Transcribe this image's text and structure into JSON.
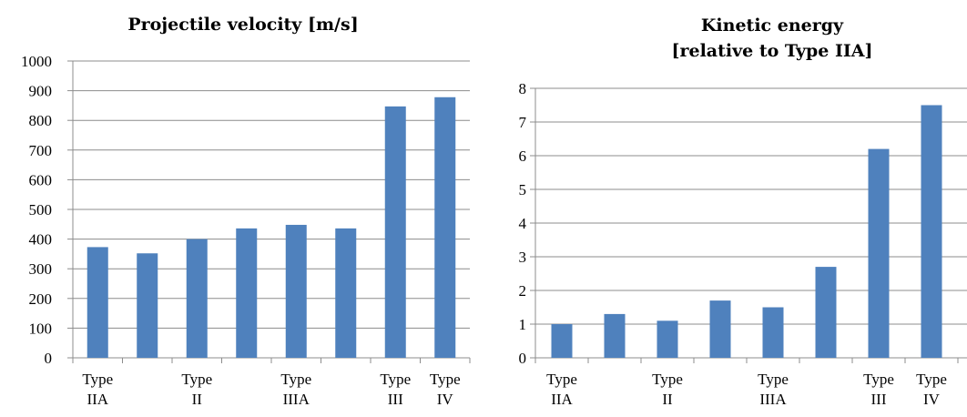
{
  "chart_data": [
    {
      "type": "bar",
      "title_lines": [
        "Projectile velocity [m/s]"
      ],
      "categories": [
        "",
        "",
        "",
        "",
        "",
        "",
        "",
        ""
      ],
      "x_labels": [
        {
          "slot": 0,
          "lines": [
            "Type",
            "IIA"
          ]
        },
        {
          "slot": 2,
          "lines": [
            "Type",
            "II"
          ]
        },
        {
          "slot": 4,
          "lines": [
            "Type",
            "IIIA"
          ]
        },
        {
          "slot": 6,
          "lines": [
            "Type",
            "III"
          ]
        },
        {
          "slot": 7,
          "lines": [
            "Type",
            "IV"
          ]
        }
      ],
      "values": [
        373,
        352,
        400,
        436,
        448,
        436,
        847,
        878
      ],
      "ylim": [
        0,
        1000
      ],
      "yticks": [
        "0",
        "100",
        "200",
        "300",
        "400",
        "500",
        "600",
        "700",
        "800",
        "900",
        "1000"
      ],
      "grid": true,
      "bar_color": "#4f81bd"
    },
    {
      "type": "bar",
      "title_lines": [
        "Kinetic energy",
        "[relative to Type IIA]"
      ],
      "categories": [
        "",
        "",
        "",
        "",
        "",
        "",
        "",
        ""
      ],
      "x_labels": [
        {
          "slot": 0,
          "lines": [
            "Type",
            "IIA"
          ]
        },
        {
          "slot": 2,
          "lines": [
            "Type",
            "II"
          ]
        },
        {
          "slot": 4,
          "lines": [
            "Type",
            "IIIA"
          ]
        },
        {
          "slot": 6,
          "lines": [
            "Type",
            "III"
          ]
        },
        {
          "slot": 7,
          "lines": [
            "Type",
            "IV"
          ]
        }
      ],
      "values": [
        1.0,
        1.3,
        1.1,
        1.7,
        1.5,
        2.7,
        6.2,
        7.5
      ],
      "ylim": [
        0,
        8
      ],
      "yticks": [
        "0",
        "1",
        "2",
        "3",
        "4",
        "5",
        "6",
        "7",
        "8"
      ],
      "grid": true,
      "bar_color": "#4f81bd"
    }
  ]
}
